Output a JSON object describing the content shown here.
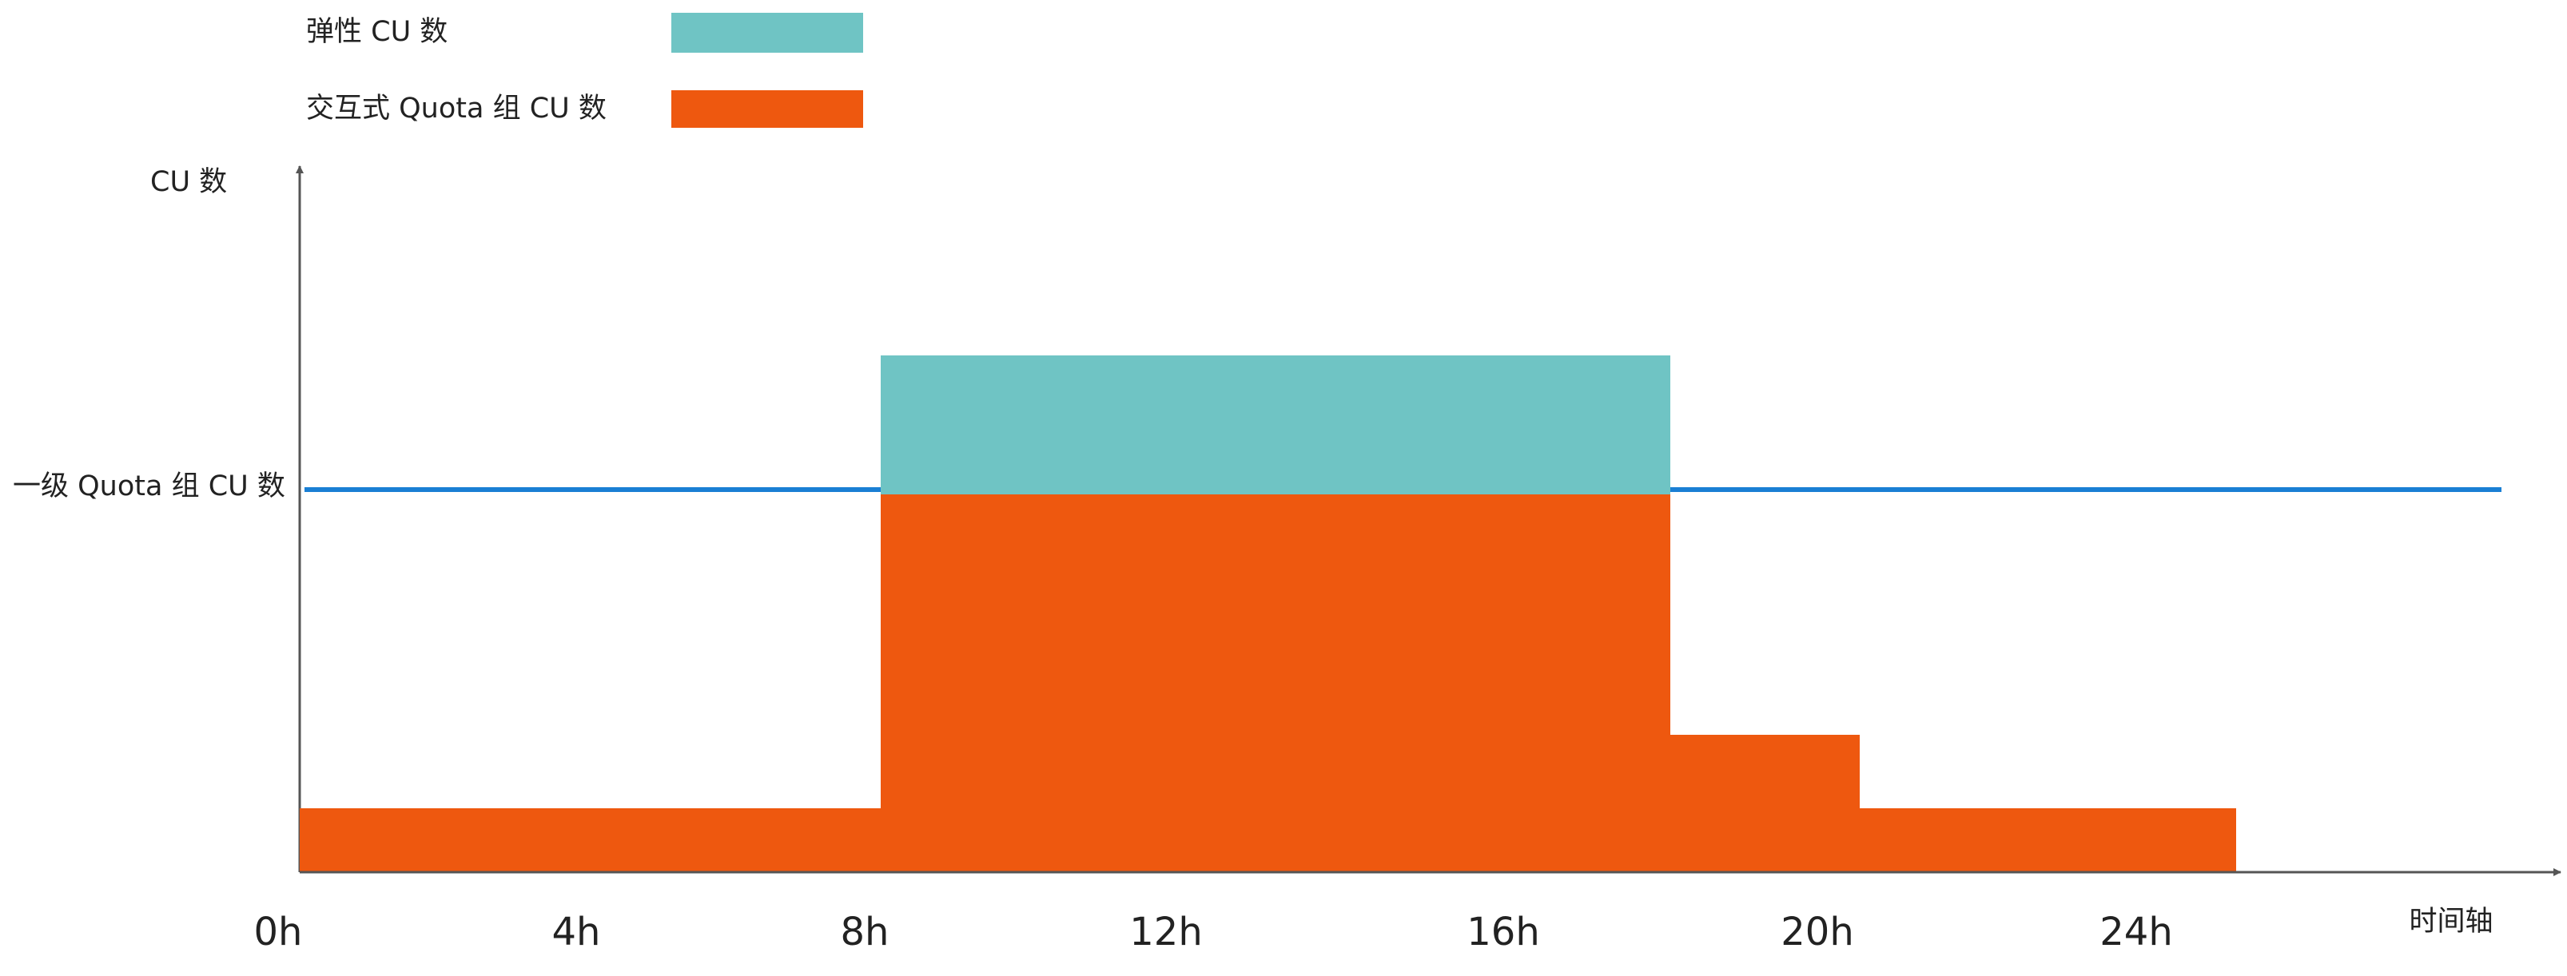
{
  "legend": {
    "items": [
      {
        "label": "弹性 CU 数"
      },
      {
        "label": "交互式 Quota 组 CU 数"
      }
    ]
  },
  "y_axis": {
    "label": "CU 数"
  },
  "reference_line": {
    "label": "一级 Quota 组 CU 数"
  },
  "x_axis": {
    "label": "时间轴",
    "ticks": [
      "0h",
      "4h",
      "8h",
      "12h",
      "16h",
      "20h",
      "24h"
    ]
  }
}
